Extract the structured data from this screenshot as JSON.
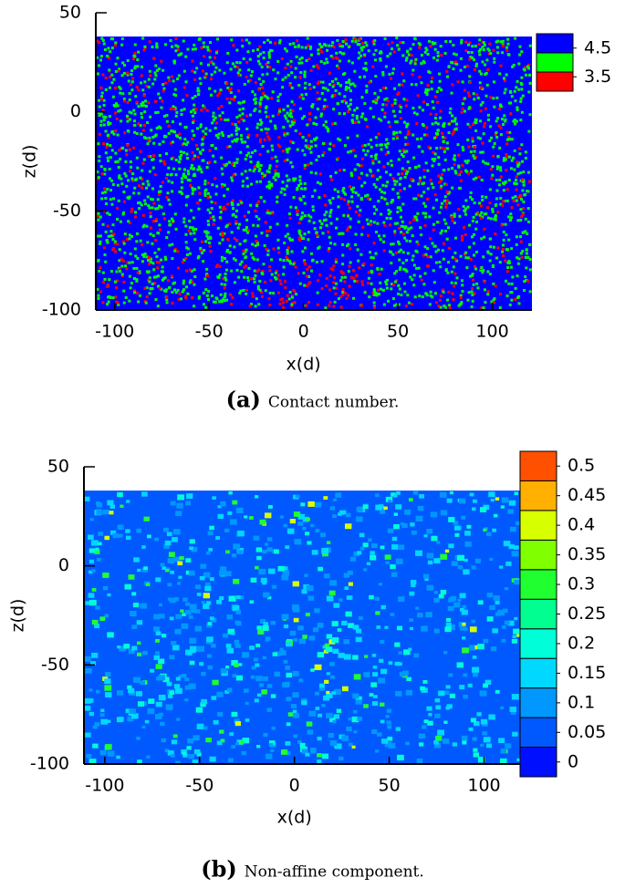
{
  "chart_data": [
    {
      "type": "heatmap",
      "caption_label": "(a)",
      "caption": "Contact number.",
      "xlabel": "x(d)",
      "ylabel": "z(d)",
      "xlim": [
        -110,
        121
      ],
      "ylim": [
        -100,
        50
      ],
      "xticks": [
        -100,
        -50,
        0,
        50,
        100
      ],
      "yticks": [
        -100,
        -50,
        0,
        50
      ],
      "field_zlim": [
        -100,
        38
      ],
      "colorbar": {
        "lim": [
          3,
          5
        ],
        "colors": [
          "#ff0000",
          "#00ff00",
          "#0000ff"
        ],
        "ticks": [
          3.5,
          4.5
        ]
      }
    },
    {
      "type": "heatmap",
      "caption_label": "(b)",
      "caption": "Non-affine component.",
      "xlabel": "x(d)",
      "ylabel": "z(d)",
      "xlim": [
        -111,
        119
      ],
      "ylim": [
        -100,
        50
      ],
      "xticks": [
        -100,
        -50,
        0,
        50,
        100
      ],
      "yticks": [
        -100,
        -50,
        0,
        50
      ],
      "field_zlim": [
        -100,
        38
      ],
      "colorbar": {
        "lim": [
          -0.025,
          0.525
        ],
        "colors": [
          "#0010ff",
          "#0058ff",
          "#0098ff",
          "#00d8ff",
          "#00ffd8",
          "#00ff90",
          "#20ff30",
          "#80ff00",
          "#d8ff00",
          "#ffb000",
          "#ff5000"
        ],
        "ticks": [
          0,
          0.05,
          0.1,
          0.15,
          0.2,
          0.25,
          0.3,
          0.35,
          0.4,
          0.45,
          0.5
        ]
      }
    }
  ]
}
